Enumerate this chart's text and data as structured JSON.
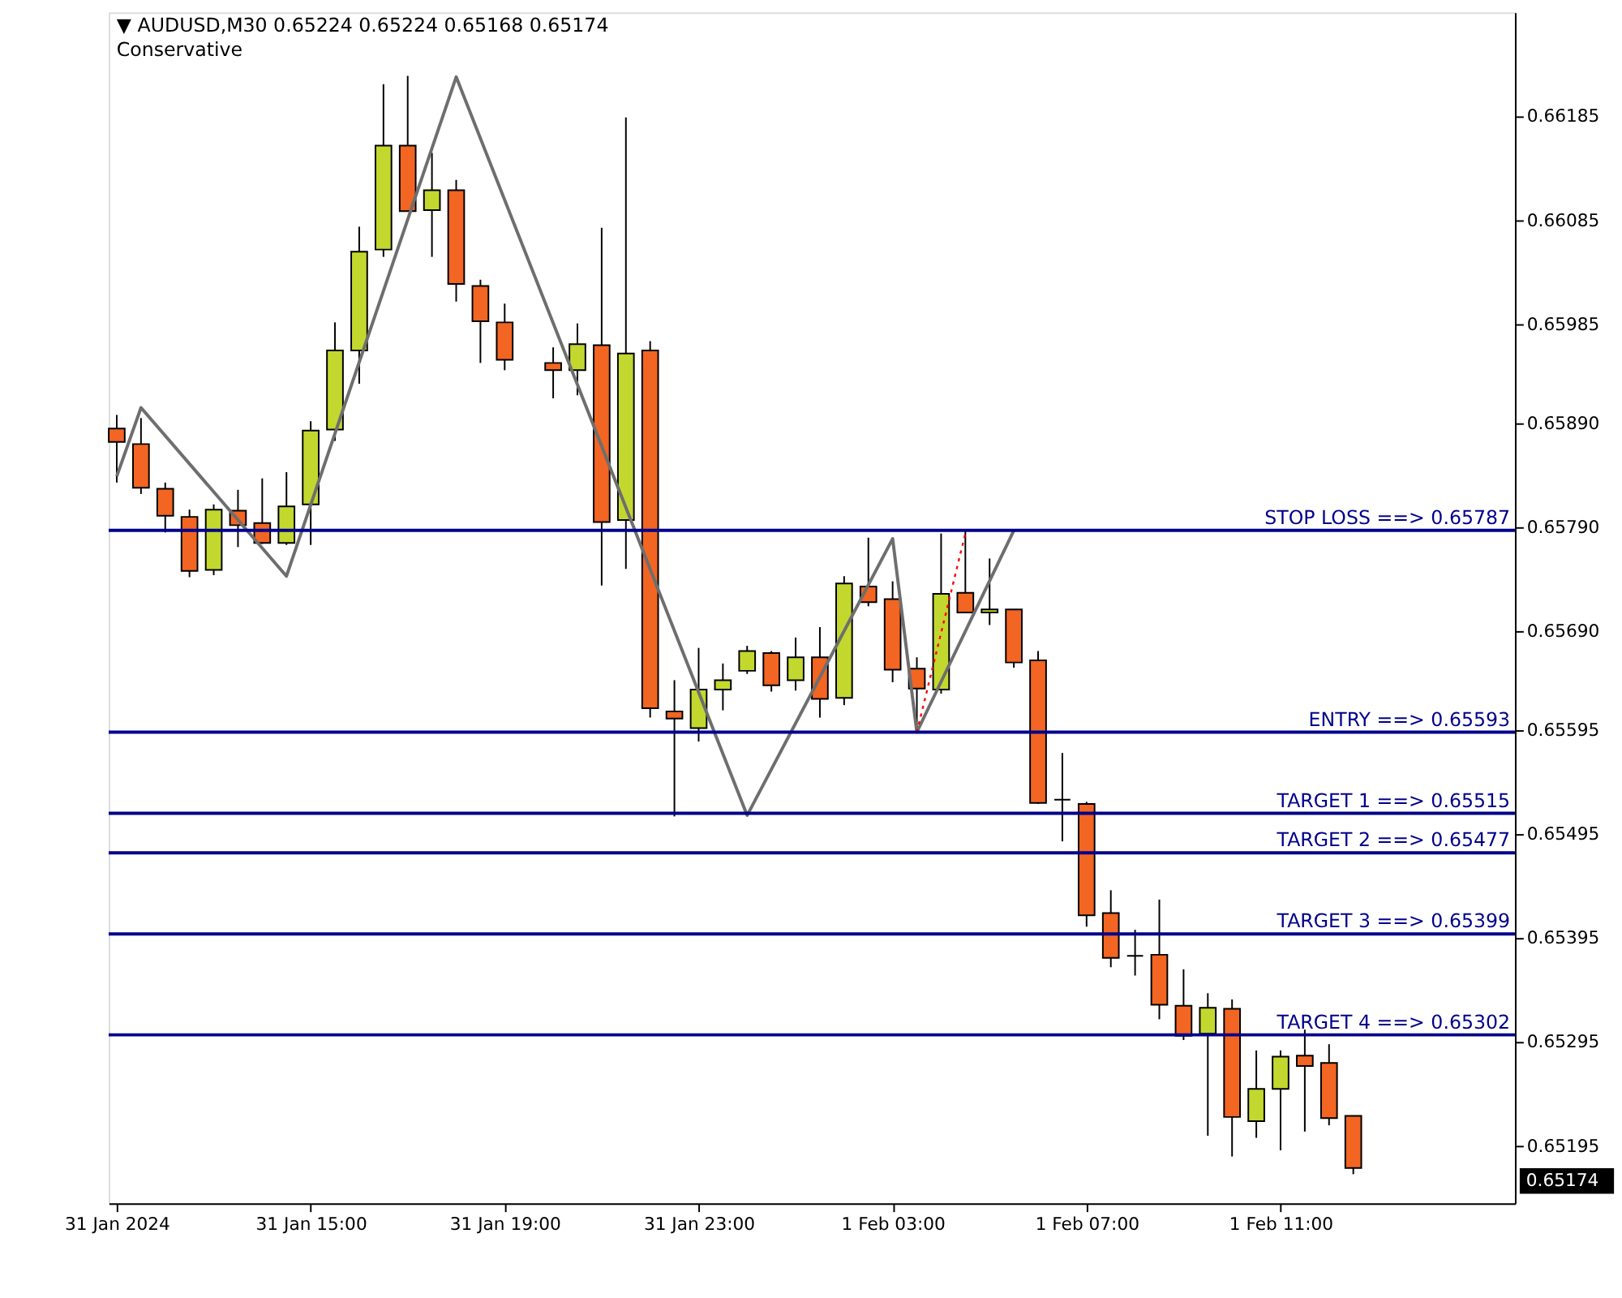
{
  "chart_data": {
    "type": "candlestick",
    "title": "▼ AUDUSD,M30  0.65224 0.65224 0.65168 0.65174",
    "subtitle": "Conservative",
    "x": [
      "2024-01-31T11:00",
      "2024-01-31T11:30",
      "2024-01-31T12:00",
      "2024-01-31T12:30",
      "2024-01-31T13:00",
      "2024-01-31T13:30",
      "2024-01-31T14:00",
      "2024-01-31T14:30",
      "2024-01-31T15:00",
      "2024-01-31T15:30",
      "2024-01-31T16:00",
      "2024-01-31T16:30",
      "2024-01-31T17:00",
      "2024-01-31T17:30",
      "2024-01-31T18:00",
      "2024-01-31T18:30",
      "2024-01-31T19:00",
      "2024-01-31T20:00",
      "2024-01-31T20:30",
      "2024-01-31T21:00",
      "2024-01-31T21:30",
      "2024-01-31T22:00",
      "2024-01-31T22:30",
      "2024-01-31T23:00",
      "2024-01-31T23:30",
      "2024-02-01T00:00",
      "2024-02-01T00:30",
      "2024-02-01T01:00",
      "2024-02-01T01:30",
      "2024-02-01T02:00",
      "2024-02-01T02:30",
      "2024-02-01T03:00",
      "2024-02-01T03:30",
      "2024-02-01T04:00",
      "2024-02-01T04:30",
      "2024-02-01T05:00",
      "2024-02-01T05:30",
      "2024-02-01T06:00",
      "2024-02-01T06:30",
      "2024-02-01T07:00",
      "2024-02-01T07:30",
      "2024-02-01T08:00",
      "2024-02-01T08:30",
      "2024-02-01T09:00",
      "2024-02-01T09:30",
      "2024-02-01T10:00",
      "2024-02-01T10:30",
      "2024-02-01T11:00",
      "2024-02-01T11:30",
      "2024-02-01T12:00",
      "2024-02-01T12:30"
    ],
    "ohlc": [
      [
        0.65885,
        0.65898,
        0.65833,
        0.65872
      ],
      [
        0.6587,
        0.65895,
        0.65822,
        0.65828
      ],
      [
        0.65827,
        0.65833,
        0.65785,
        0.65801
      ],
      [
        0.658,
        0.65807,
        0.65742,
        0.65748
      ],
      [
        0.65749,
        0.65812,
        0.65744,
        0.65807
      ],
      [
        0.65806,
        0.65826,
        0.65771,
        0.65792
      ],
      [
        0.65794,
        0.65837,
        0.65774,
        0.65775
      ],
      [
        0.65775,
        0.65843,
        0.65773,
        0.6581
      ],
      [
        0.65812,
        0.65892,
        0.65773,
        0.65883
      ],
      [
        0.65884,
        0.65987,
        0.65873,
        0.6596
      ],
      [
        0.6596,
        0.66079,
        0.65928,
        0.66055
      ],
      [
        0.66057,
        0.66216,
        0.6605,
        0.66157
      ],
      [
        0.66157,
        0.66224,
        0.66094,
        0.66094
      ],
      [
        0.66095,
        0.6615,
        0.6605,
        0.66114
      ],
      [
        0.66114,
        0.66124,
        0.66007,
        0.66024
      ],
      [
        0.66022,
        0.66028,
        0.65948,
        0.65988
      ],
      [
        0.65987,
        0.66005,
        0.65941,
        0.65951
      ],
      [
        0.65948,
        0.65963,
        0.65914,
        0.65941
      ],
      [
        0.65941,
        0.65986,
        0.65917,
        0.65966
      ],
      [
        0.65965,
        0.66078,
        0.65734,
        0.65795
      ],
      [
        0.65797,
        0.66184,
        0.6575,
        0.65957
      ],
      [
        0.6596,
        0.65969,
        0.65607,
        0.65616
      ],
      [
        0.65613,
        0.65643,
        0.65512,
        0.65606
      ],
      [
        0.65597,
        0.65674,
        0.65584,
        0.65634
      ],
      [
        0.65634,
        0.65659,
        0.65614,
        0.65643
      ],
      [
        0.65652,
        0.65676,
        0.65649,
        0.65671
      ],
      [
        0.65669,
        0.65671,
        0.65632,
        0.65638
      ],
      [
        0.65643,
        0.65684,
        0.65633,
        0.65665
      ],
      [
        0.65665,
        0.65694,
        0.65607,
        0.65625
      ],
      [
        0.65626,
        0.65743,
        0.65619,
        0.65736
      ],
      [
        0.65733,
        0.6578,
        0.65714,
        0.65718
      ],
      [
        0.65721,
        0.65738,
        0.65641,
        0.65653
      ],
      [
        0.65654,
        0.65665,
        0.65593,
        0.65635
      ],
      [
        0.65634,
        0.65784,
        0.6563,
        0.65726
      ],
      [
        0.65727,
        0.65786,
        0.65708,
        0.65708
      ],
      [
        0.65708,
        0.6576,
        0.65696,
        0.65711
      ],
      [
        0.65711,
        0.65711,
        0.65655,
        0.6566
      ],
      [
        0.65662,
        0.65671,
        0.65524,
        0.65525
      ],
      [
        0.65528,
        0.65573,
        0.65488,
        0.65528
      ],
      [
        0.65524,
        0.65526,
        0.65406,
        0.65417
      ],
      [
        0.65419,
        0.65441,
        0.65367,
        0.65376
      ],
      [
        0.65378,
        0.65403,
        0.65359,
        0.65378
      ],
      [
        0.65379,
        0.65432,
        0.65317,
        0.65331
      ],
      [
        0.6533,
        0.65365,
        0.65297,
        0.65301
      ],
      [
        0.65303,
        0.65342,
        0.65205,
        0.65328
      ],
      [
        0.65327,
        0.65336,
        0.65185,
        0.65223
      ],
      [
        0.65219,
        0.65287,
        0.65203,
        0.6525
      ],
      [
        0.6525,
        0.65287,
        0.65191,
        0.65281
      ],
      [
        0.65282,
        0.65307,
        0.65209,
        0.65272
      ],
      [
        0.65275,
        0.65293,
        0.65215,
        0.65222
      ],
      [
        0.65224,
        0.65224,
        0.65168,
        0.65174
      ]
    ],
    "colors": [
      "#f26522",
      "#f26522",
      "#f26522",
      "#f26522",
      "#c3d82f",
      "#f26522",
      "#f26522",
      "#c3d82f",
      "#c3d82f",
      "#c3d82f",
      "#c3d82f",
      "#c3d82f",
      "#f26522",
      "#c3d82f",
      "#f26522",
      "#f26522",
      "#f26522",
      "#f26522",
      "#c3d82f",
      "#f26522",
      "#c3d82f",
      "#f26522",
      "#f26522",
      "#c3d82f",
      "#c3d82f",
      "#c3d82f",
      "#f26522",
      "#c3d82f",
      "#f26522",
      "#c3d82f",
      "#f26522",
      "#f26522",
      "#f26522",
      "#c3d82f",
      "#f26522",
      "#c3d82f",
      "#f26522",
      "#f26522",
      "#000000",
      "#f26522",
      "#f26522",
      "#000000",
      "#f26522",
      "#f26522",
      "#c3d82f",
      "#f26522",
      "#c3d82f",
      "#c3d82f",
      "#f26522",
      "#f26522",
      "#f26522"
    ],
    "series": [
      {
        "type": "line",
        "color": "#6e6e6e",
        "line_style": "solid",
        "x": [
          "2024-01-31T11:00",
          "2024-01-31T11:30",
          "2024-01-31T14:30",
          "2024-01-31T18:00",
          "2024-02-01T00:00",
          "2024-02-01T03:00",
          "2024-02-01T03:30",
          "2024-02-01T05:30"
        ],
        "values": [
          0.65839,
          0.65905,
          0.65743,
          0.66223,
          0.65513,
          0.65779,
          0.65593,
          0.65787
        ]
      },
      {
        "type": "line",
        "color": "#ff0000",
        "line_style": "dotted",
        "x": [
          "2024-02-01T03:30",
          "2024-02-01T04:30"
        ],
        "values": [
          0.65593,
          0.65784
        ]
      }
    ],
    "ref_lines": [
      {
        "axis": "y",
        "value": 0.65787,
        "label": "STOP LOSS          ==>  0.65787",
        "color": "#00008b"
      },
      {
        "axis": "y",
        "value": 0.65593,
        "label": "ENTRY             ==>  0.65593",
        "color": "#00008b"
      },
      {
        "axis": "y",
        "value": 0.65515,
        "label": "TARGET 1          ==>  0.65515",
        "color": "#00008b"
      },
      {
        "axis": "y",
        "value": 0.65477,
        "label": "TARGET 2          ==>  0.65477",
        "color": "#00008b"
      },
      {
        "axis": "y",
        "value": 0.65399,
        "label": "TARGET 3          ==>  0.65399",
        "color": "#00008b"
      },
      {
        "axis": "y",
        "value": 0.65302,
        "label": "TARGET 4          ==>  0.65302",
        "color": "#00008b"
      }
    ],
    "annotations": [
      "0.65174"
    ],
    "xlim": [
      "2024-01-31T10:50",
      "2024-02-01T15:50"
    ],
    "xticks": [
      {
        "value": "2024-01-31T11:00",
        "label": "31 Jan 2024"
      },
      {
        "value": "2024-01-31T15:00",
        "label": "31 Jan 15:00"
      },
      {
        "value": "2024-01-31T19:00",
        "label": "31 Jan 19:00"
      },
      {
        "value": "2024-01-31T23:00",
        "label": "31 Jan 23:00"
      },
      {
        "value": "2024-02-01T03:00",
        "label": "1 Feb 03:00"
      },
      {
        "value": "2024-02-01T07:00",
        "label": "1 Feb 07:00"
      },
      {
        "value": "2024-02-01T11:00",
        "label": "1 Feb 11:00"
      }
    ],
    "ylim": [
      0.6514,
      0.66285
    ],
    "yticks": [
      0.66185,
      0.66085,
      0.65985,
      {
        "value": 0.6589,
        "label": "0.65890"
      },
      {
        "value": 0.6579,
        "label": "0.65790"
      },
      {
        "value": 0.6569,
        "label": "0.65690"
      },
      0.65595,
      0.65495,
      0.65395,
      0.65295,
      0.65195
    ],
    "grid": false
  }
}
